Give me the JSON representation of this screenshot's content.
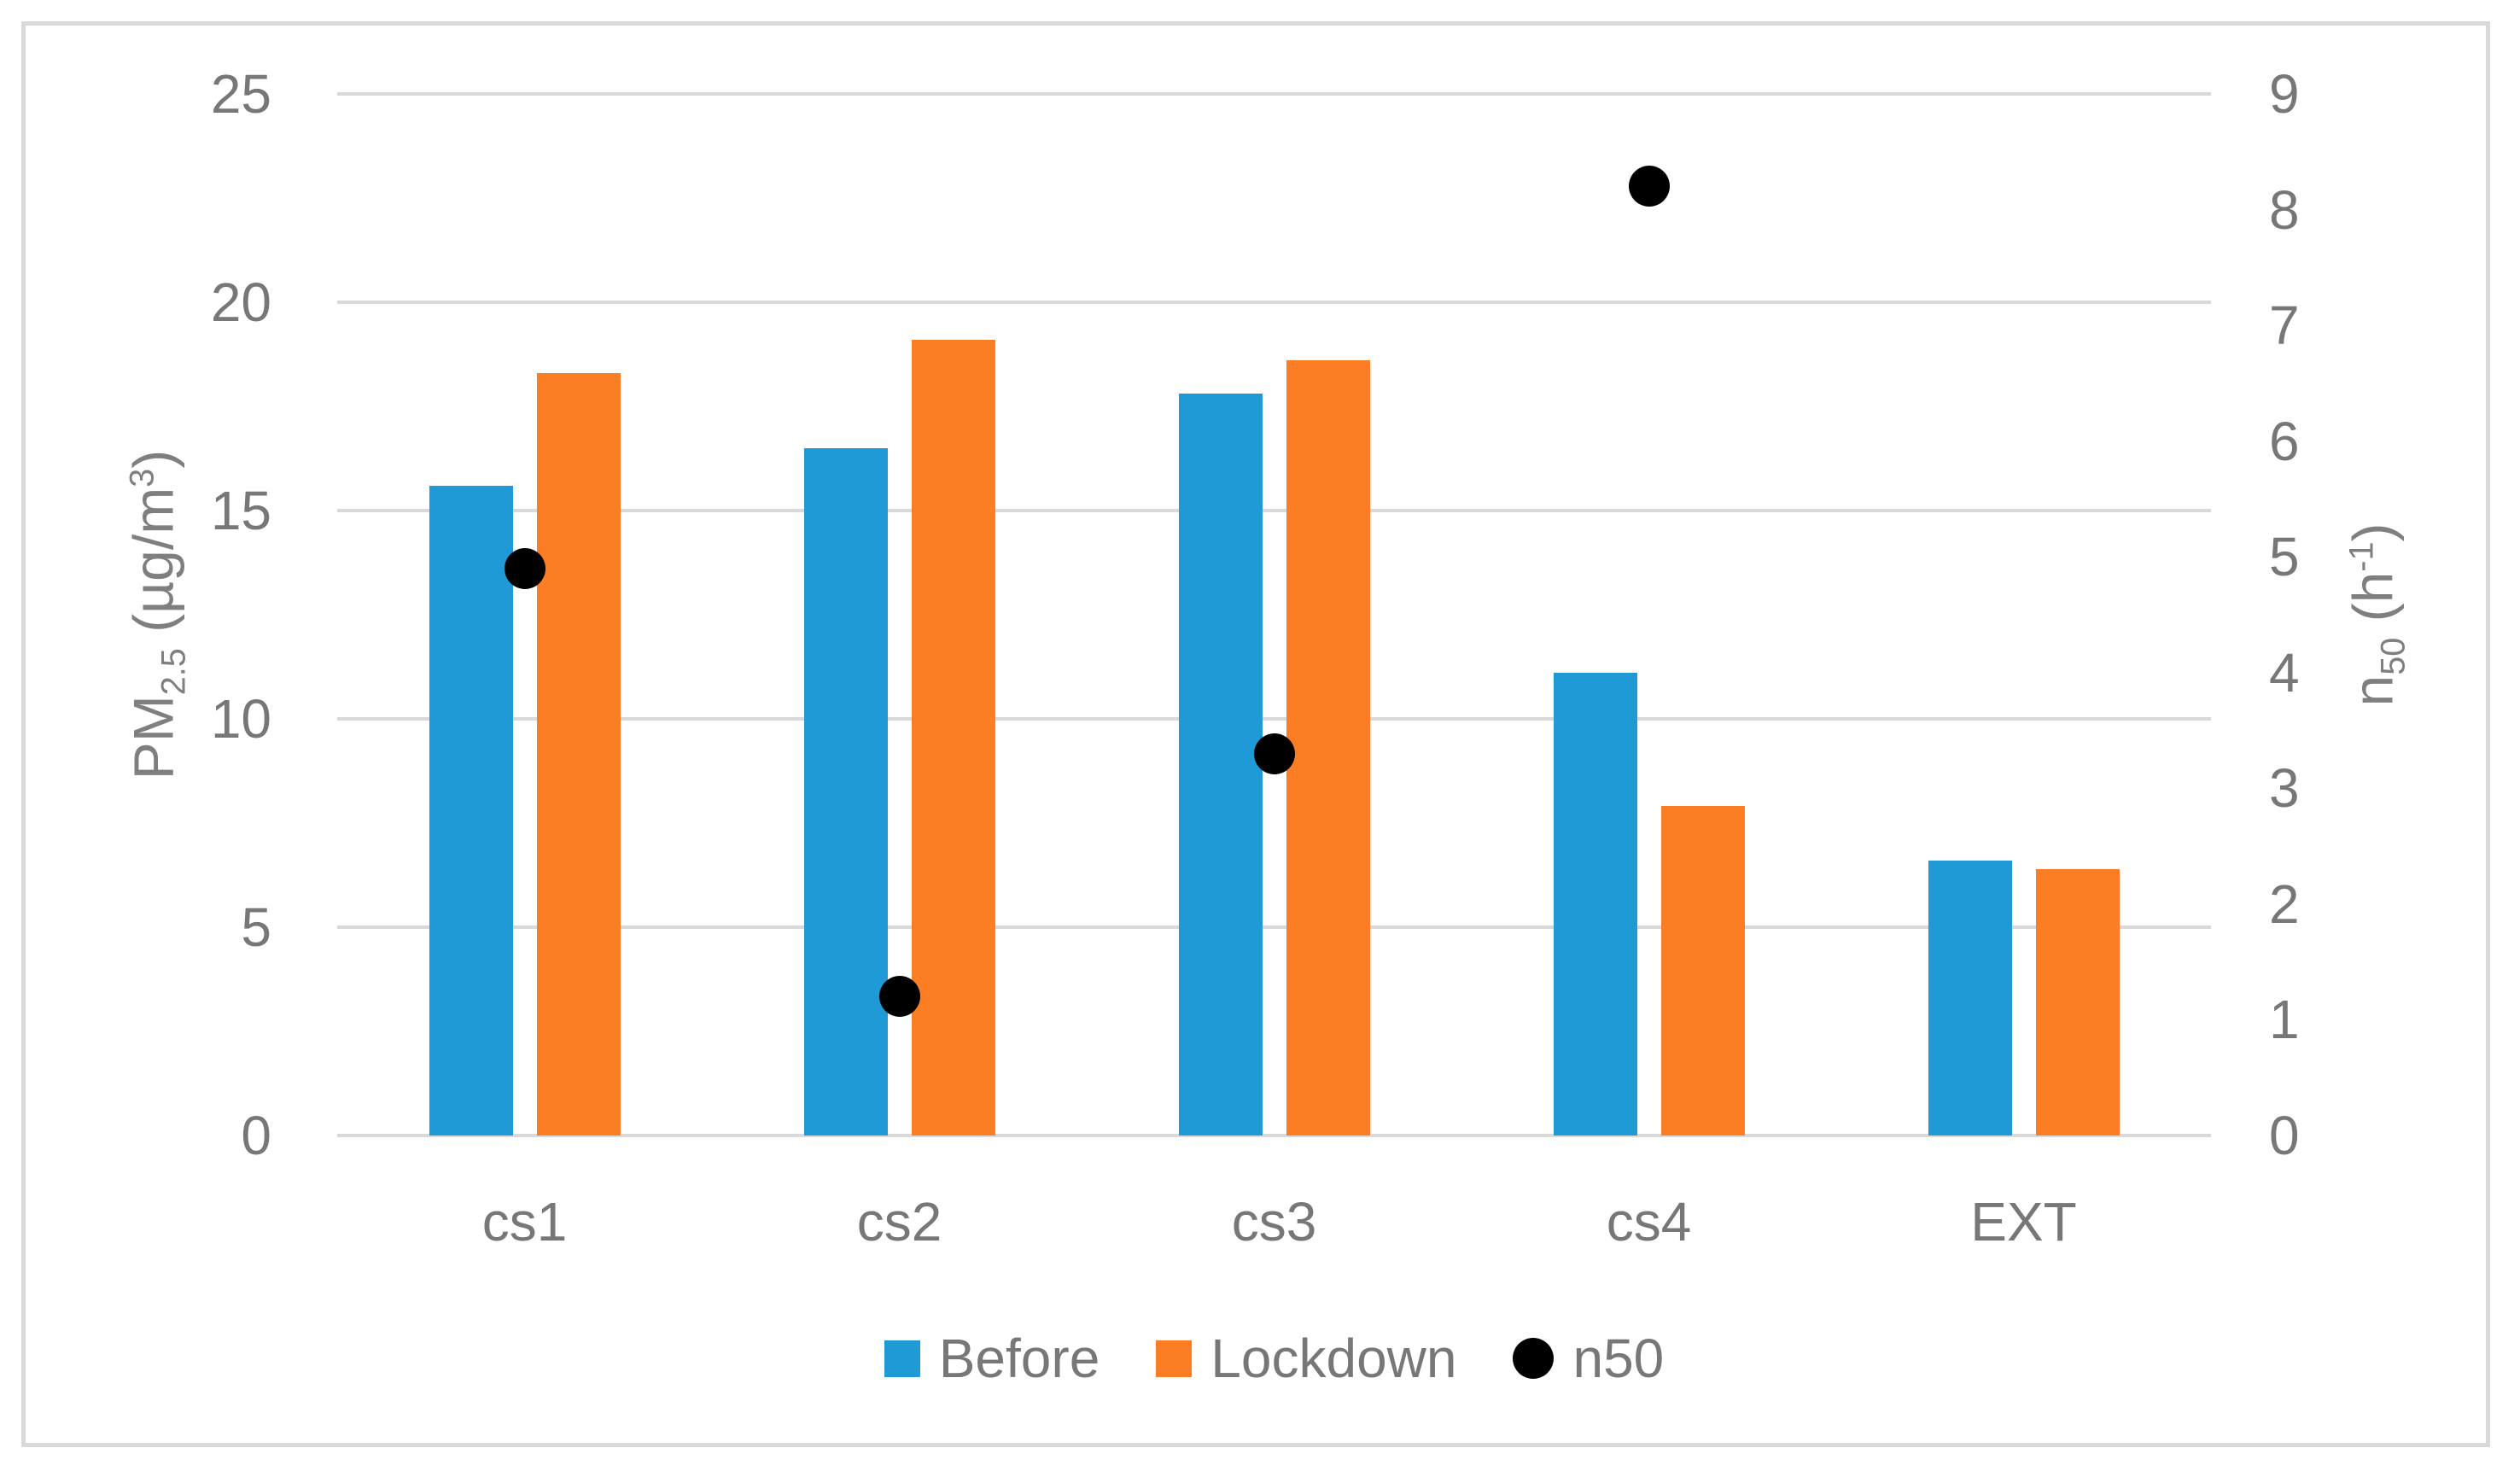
{
  "frame": {
    "background": "#ffffff",
    "border_color": "#d9d9d9"
  },
  "chart_data": {
    "type": "bar",
    "subtype": "clustered-bars-with-scatter-dual-axis",
    "categories": [
      "cs1",
      "cs2",
      "cs3",
      "cs4",
      "EXT"
    ],
    "series": [
      {
        "name": "Before",
        "type": "bar",
        "axis": "left",
        "color": "#1f9ad7",
        "values": [
          15.6,
          16.5,
          17.8,
          11.1,
          6.6
        ]
      },
      {
        "name": "Lockdown",
        "type": "bar",
        "axis": "left",
        "color": "#fc7e24",
        "values": [
          18.3,
          19.1,
          18.6,
          7.9,
          6.4
        ]
      },
      {
        "name": "n50",
        "type": "scatter",
        "axis": "right",
        "color": "#000000",
        "values": [
          4.9,
          1.2,
          3.3,
          8.2,
          null
        ]
      }
    ],
    "left_axis": {
      "title": {
        "base": "PM",
        "sub": "2.5",
        "mid": " (µg/m",
        "sup": "3",
        "end": ")"
      },
      "ticks": [
        0,
        5,
        10,
        15,
        20,
        25
      ],
      "range": [
        0,
        25
      ]
    },
    "right_axis": {
      "title": {
        "base": "n",
        "sub": "50",
        "mid": " (h",
        "sup": "-1",
        "end": ")"
      },
      "ticks": [
        0,
        1,
        2,
        3,
        4,
        5,
        6,
        7,
        8,
        9
      ],
      "range": [
        0,
        9
      ]
    },
    "legend": [
      {
        "label": "Before",
        "marker": "square",
        "color": "#1f9ad7"
      },
      {
        "label": "Lockdown",
        "marker": "square",
        "color": "#fc7e24"
      },
      {
        "label": "n50",
        "marker": "circle",
        "color": "#000000"
      }
    ],
    "grid": true,
    "gridline_color": "#d9d9d9",
    "text_color": "#777777",
    "legend_position": "bottom"
  }
}
